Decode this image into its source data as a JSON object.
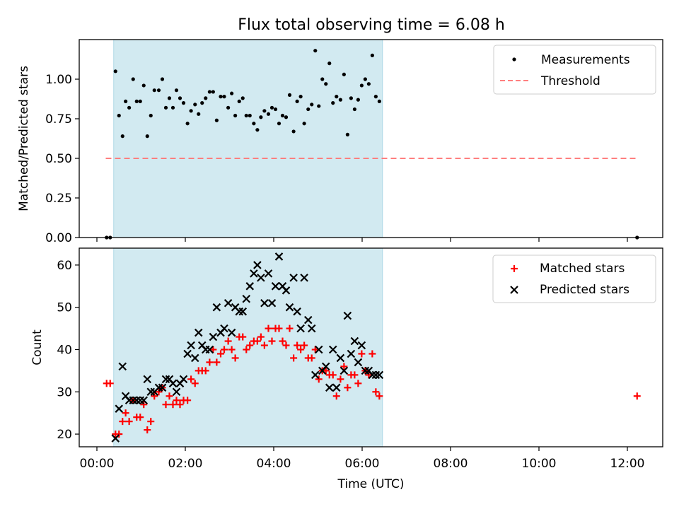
{
  "title": "Flux total observing time = 6.08 h",
  "colors": {
    "shade": "#add8e6",
    "measurement": "#000000",
    "threshold": "#ff7f7f",
    "matched": "#ff0000",
    "predicted": "#000000"
  },
  "chart_data": [
    {
      "type": "scatter",
      "panel": "top",
      "ylabel": "Matched/Predicted stars",
      "xlabel": "",
      "x_unit": "hours UTC",
      "xlim": [
        -0.4,
        12.8
      ],
      "ylim": [
        0,
        1.25
      ],
      "yticks": [
        0,
        0.25,
        0.5,
        0.75,
        1.0
      ],
      "ytick_labels": [
        "0.00",
        "0.25",
        "0.50",
        "0.75",
        "1.00"
      ],
      "shaded_span": [
        0.38,
        6.46
      ],
      "legend_position": "top-right",
      "legend": [
        "Measurements",
        "Threshold"
      ],
      "threshold": {
        "y": 0.5,
        "x_range": [
          0.2,
          12.2
        ]
      },
      "series": [
        {
          "name": "Measurements",
          "marker": "dot",
          "points": [
            [
              0.22,
              0.0
            ],
            [
              0.3,
              0.0
            ],
            [
              0.42,
              1.05
            ],
            [
              0.5,
              0.77
            ],
            [
              0.58,
              0.64
            ],
            [
              0.65,
              0.86
            ],
            [
              0.73,
              0.82
            ],
            [
              0.82,
              1.0
            ],
            [
              0.9,
              0.86
            ],
            [
              0.98,
              0.86
            ],
            [
              1.06,
              0.96
            ],
            [
              1.14,
              0.64
            ],
            [
              1.22,
              0.77
            ],
            [
              1.3,
              0.93
            ],
            [
              1.4,
              0.93
            ],
            [
              1.48,
              1.0
            ],
            [
              1.56,
              0.82
            ],
            [
              1.64,
              0.88
            ],
            [
              1.72,
              0.82
            ],
            [
              1.8,
              0.93
            ],
            [
              1.88,
              0.88
            ],
            [
              1.96,
              0.85
            ],
            [
              2.05,
              0.72
            ],
            [
              2.13,
              0.8
            ],
            [
              2.22,
              0.84
            ],
            [
              2.3,
              0.78
            ],
            [
              2.38,
              0.85
            ],
            [
              2.46,
              0.88
            ],
            [
              2.55,
              0.92
            ],
            [
              2.63,
              0.92
            ],
            [
              2.71,
              0.74
            ],
            [
              2.8,
              0.89
            ],
            [
              2.88,
              0.89
            ],
            [
              2.97,
              0.82
            ],
            [
              3.05,
              0.91
            ],
            [
              3.13,
              0.77
            ],
            [
              3.22,
              0.86
            ],
            [
              3.3,
              0.88
            ],
            [
              3.38,
              0.77
            ],
            [
              3.46,
              0.77
            ],
            [
              3.55,
              0.72
            ],
            [
              3.63,
              0.68
            ],
            [
              3.71,
              0.76
            ],
            [
              3.79,
              0.8
            ],
            [
              3.88,
              0.78
            ],
            [
              3.96,
              0.82
            ],
            [
              4.04,
              0.81
            ],
            [
              4.12,
              0.72
            ],
            [
              4.2,
              0.77
            ],
            [
              4.28,
              0.76
            ],
            [
              4.36,
              0.9
            ],
            [
              4.45,
              0.67
            ],
            [
              4.53,
              0.86
            ],
            [
              4.61,
              0.89
            ],
            [
              4.69,
              0.72
            ],
            [
              4.78,
              0.81
            ],
            [
              4.86,
              0.84
            ],
            [
              4.94,
              1.18
            ],
            [
              5.02,
              0.83
            ],
            [
              5.1,
              1.0
            ],
            [
              5.18,
              0.97
            ],
            [
              5.26,
              1.1
            ],
            [
              5.34,
              0.85
            ],
            [
              5.42,
              0.89
            ],
            [
              5.51,
              0.87
            ],
            [
              5.59,
              1.03
            ],
            [
              5.67,
              0.65
            ],
            [
              5.75,
              0.88
            ],
            [
              5.83,
              0.81
            ],
            [
              5.91,
              0.87
            ],
            [
              5.99,
              0.96
            ],
            [
              6.07,
              1.0
            ],
            [
              6.15,
              0.97
            ],
            [
              6.23,
              1.15
            ],
            [
              6.31,
              0.89
            ],
            [
              6.39,
              0.86
            ],
            [
              12.22,
              0.0
            ]
          ]
        }
      ]
    },
    {
      "type": "scatter",
      "panel": "bottom",
      "ylabel": "Count",
      "xlabel": "Time (UTC)",
      "x_unit": "hours UTC",
      "xlim": [
        -0.4,
        12.8
      ],
      "ylim": [
        17,
        64
      ],
      "yticks": [
        20,
        30,
        40,
        50,
        60
      ],
      "ytick_labels": [
        "20",
        "30",
        "40",
        "50",
        "60"
      ],
      "xticks": [
        0,
        2,
        4,
        6,
        8,
        10,
        12
      ],
      "xtick_labels": [
        "00:00",
        "02:00",
        "04:00",
        "06:00",
        "08:00",
        "10:00",
        "12:00"
      ],
      "shaded_span": [
        0.38,
        6.46
      ],
      "legend_position": "top-right",
      "legend": [
        "Matched stars",
        "Predicted stars"
      ],
      "series": [
        {
          "name": "Matched stars",
          "marker": "plus",
          "points": [
            [
              0.22,
              32
            ],
            [
              0.3,
              32
            ],
            [
              0.42,
              20
            ],
            [
              0.5,
              20
            ],
            [
              0.58,
              23
            ],
            [
              0.65,
              25
            ],
            [
              0.73,
              23
            ],
            [
              0.82,
              28
            ],
            [
              0.9,
              24
            ],
            [
              0.98,
              24
            ],
            [
              1.06,
              27
            ],
            [
              1.14,
              21
            ],
            [
              1.22,
              23
            ],
            [
              1.3,
              29
            ],
            [
              1.4,
              30
            ],
            [
              1.48,
              31
            ],
            [
              1.56,
              27
            ],
            [
              1.64,
              29
            ],
            [
              1.72,
              27
            ],
            [
              1.8,
              28
            ],
            [
              1.88,
              27
            ],
            [
              1.96,
              28
            ],
            [
              2.05,
              28
            ],
            [
              2.13,
              33
            ],
            [
              2.22,
              32
            ],
            [
              2.3,
              35
            ],
            [
              2.38,
              35
            ],
            [
              2.46,
              35
            ],
            [
              2.55,
              37
            ],
            [
              2.63,
              40
            ],
            [
              2.71,
              37
            ],
            [
              2.8,
              39
            ],
            [
              2.88,
              40
            ],
            [
              2.97,
              42
            ],
            [
              3.05,
              40
            ],
            [
              3.13,
              38
            ],
            [
              3.22,
              43
            ],
            [
              3.3,
              43
            ],
            [
              3.38,
              40
            ],
            [
              3.46,
              41
            ],
            [
              3.55,
              42
            ],
            [
              3.63,
              42
            ],
            [
              3.71,
              43
            ],
            [
              3.79,
              41
            ],
            [
              3.88,
              45
            ],
            [
              3.96,
              42
            ],
            [
              4.04,
              45
            ],
            [
              4.12,
              45
            ],
            [
              4.2,
              42
            ],
            [
              4.28,
              41
            ],
            [
              4.36,
              45
            ],
            [
              4.45,
              38
            ],
            [
              4.53,
              41
            ],
            [
              4.61,
              40
            ],
            [
              4.69,
              41
            ],
            [
              4.78,
              38
            ],
            [
              4.86,
              38
            ],
            [
              4.94,
              40
            ],
            [
              5.02,
              33
            ],
            [
              5.1,
              35
            ],
            [
              5.18,
              35
            ],
            [
              5.26,
              34
            ],
            [
              5.34,
              34
            ],
            [
              5.42,
              29
            ],
            [
              5.51,
              33
            ],
            [
              5.59,
              36
            ],
            [
              5.67,
              31
            ],
            [
              5.75,
              34
            ],
            [
              5.83,
              34
            ],
            [
              5.91,
              32
            ],
            [
              5.99,
              39
            ],
            [
              6.07,
              35
            ],
            [
              6.15,
              34
            ],
            [
              6.23,
              39
            ],
            [
              6.31,
              30
            ],
            [
              6.39,
              29
            ],
            [
              12.22,
              29
            ]
          ]
        },
        {
          "name": "Predicted stars",
          "marker": "x",
          "points": [
            [
              0.42,
              19
            ],
            [
              0.5,
              26
            ],
            [
              0.58,
              36
            ],
            [
              0.65,
              29
            ],
            [
              0.73,
              28
            ],
            [
              0.82,
              28
            ],
            [
              0.9,
              28
            ],
            [
              0.98,
              28
            ],
            [
              1.06,
              28
            ],
            [
              1.14,
              33
            ],
            [
              1.22,
              30
            ],
            [
              1.3,
              30
            ],
            [
              1.4,
              31
            ],
            [
              1.48,
              31
            ],
            [
              1.56,
              33
            ],
            [
              1.64,
              33
            ],
            [
              1.72,
              32
            ],
            [
              1.8,
              30
            ],
            [
              1.88,
              32
            ],
            [
              1.96,
              33
            ],
            [
              2.05,
              39
            ],
            [
              2.13,
              41
            ],
            [
              2.22,
              38
            ],
            [
              2.3,
              44
            ],
            [
              2.38,
              41
            ],
            [
              2.46,
              40
            ],
            [
              2.55,
              40
            ],
            [
              2.63,
              43
            ],
            [
              2.71,
              50
            ],
            [
              2.8,
              44
            ],
            [
              2.88,
              45
            ],
            [
              2.97,
              51
            ],
            [
              3.05,
              44
            ],
            [
              3.13,
              50
            ],
            [
              3.22,
              49
            ],
            [
              3.3,
              49
            ],
            [
              3.38,
              52
            ],
            [
              3.46,
              55
            ],
            [
              3.55,
              58
            ],
            [
              3.63,
              60
            ],
            [
              3.71,
              57
            ],
            [
              3.79,
              51
            ],
            [
              3.88,
              58
            ],
            [
              3.96,
              51
            ],
            [
              4.04,
              55
            ],
            [
              4.12,
              62
            ],
            [
              4.2,
              55
            ],
            [
              4.28,
              54
            ],
            [
              4.36,
              50
            ],
            [
              4.45,
              57
            ],
            [
              4.53,
              49
            ],
            [
              4.61,
              45
            ],
            [
              4.69,
              57
            ],
            [
              4.78,
              47
            ],
            [
              4.86,
              45
            ],
            [
              4.94,
              34
            ],
            [
              5.02,
              40
            ],
            [
              5.1,
              35
            ],
            [
              5.18,
              36
            ],
            [
              5.26,
              31
            ],
            [
              5.34,
              40
            ],
            [
              5.42,
              31
            ],
            [
              5.51,
              38
            ],
            [
              5.59,
              35
            ],
            [
              5.67,
              48
            ],
            [
              5.75,
              39
            ],
            [
              5.83,
              42
            ],
            [
              5.91,
              37
            ],
            [
              5.99,
              41
            ],
            [
              6.07,
              35
            ],
            [
              6.15,
              35
            ],
            [
              6.23,
              34
            ],
            [
              6.31,
              34
            ],
            [
              6.39,
              34
            ]
          ]
        }
      ]
    }
  ]
}
